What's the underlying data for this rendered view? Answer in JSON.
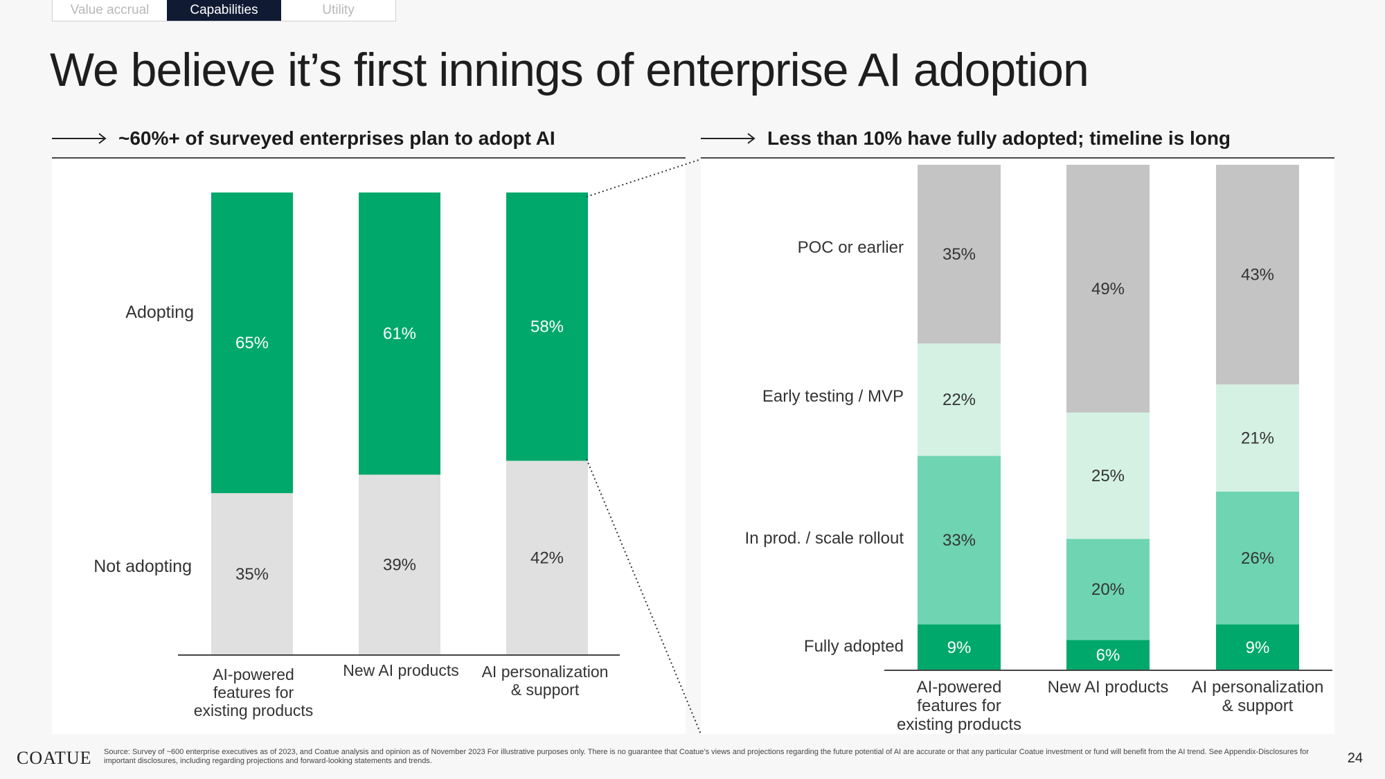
{
  "tabs": [
    {
      "label": "Value accrual",
      "active": false
    },
    {
      "label": "Capabilities",
      "active": true
    },
    {
      "label": "Utility",
      "active": false
    }
  ],
  "title": "We believe it’s first innings of enterprise AI adoption",
  "left": {
    "subheading": "~60%+ of surveyed enterprises plan to adopt AI"
  },
  "right": {
    "subheading": "Less than 10% have fully adopted; timeline is long"
  },
  "colors": {
    "adopting": "#00a86b",
    "not_adopting": "#e0e0e0",
    "poc": "#c4c4c4",
    "early_testing": "#d4f1e4",
    "in_prod": "#6fd4b2",
    "fully_adopted": "#00a86b"
  },
  "chart_data": [
    {
      "type": "bar",
      "stacked": true,
      "categories": [
        "AI-powered features for existing products",
        "New AI products",
        "AI personalization & support"
      ],
      "series": [
        {
          "name": "Not adopting",
          "values": [
            35,
            39,
            42
          ],
          "labels": [
            "35%",
            "39%",
            "42%"
          ]
        },
        {
          "name": "Adopting",
          "values": [
            65,
            61,
            58
          ],
          "labels": [
            "65%",
            "61%",
            "58%"
          ]
        }
      ],
      "ylim": [
        0,
        100
      ]
    },
    {
      "type": "bar",
      "stacked": true,
      "categories": [
        "AI-powered features for existing products",
        "New AI products",
        "AI personalization & support"
      ],
      "series": [
        {
          "name": "Fully adopted",
          "values": [
            9,
            6,
            9
          ],
          "labels": [
            "9%",
            "6%",
            "9%"
          ]
        },
        {
          "name": "In prod. / scale rollout",
          "values": [
            33,
            20,
            26
          ],
          "labels": [
            "33%",
            "20%",
            "26%"
          ]
        },
        {
          "name": "Early testing / MVP",
          "values": [
            22,
            25,
            21
          ],
          "labels": [
            "22%",
            "25%",
            "21%"
          ]
        },
        {
          "name": "POC or earlier",
          "values": [
            35,
            49,
            43
          ],
          "labels": [
            "35%",
            "49%",
            "43%"
          ]
        }
      ],
      "ylim": [
        0,
        100
      ]
    }
  ],
  "footer": {
    "logo": "COATUE",
    "source": "Source: Survey of ~600 enterprise executives as of 2023, and Coatue analysis and opinion as of November 2023 For illustrative purposes only. There is no guarantee that Coatue’s views and projections regarding the future potential of AI are accurate or that any particular Coatue investment or fund will benefit from the AI trend. See Appendix-Disclosures for important disclosures, including regarding projections and forward-looking statements and trends.",
    "page": "24"
  }
}
